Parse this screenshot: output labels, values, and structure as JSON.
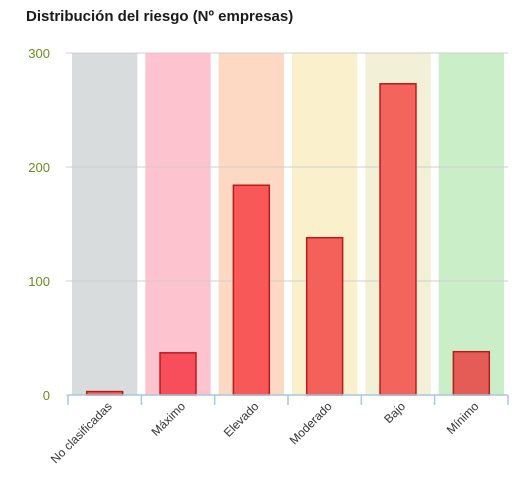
{
  "chart_data": {
    "type": "bar",
    "title": "Distribución del riesgo (Nº empresas)",
    "categories": [
      "No clasificadas",
      "Máximo",
      "Elevado",
      "Moderado",
      "Bajo",
      "Mínimo"
    ],
    "values": [
      3,
      37,
      184,
      138,
      273,
      38
    ],
    "ylim": [
      0,
      300
    ],
    "yticks": [
      0,
      100,
      200,
      300
    ],
    "grid": true,
    "legend": "none",
    "colors": {
      "bands": [
        "#d8dcdc",
        "#fdc3cf",
        "#fdd8c2",
        "#fbf0cc",
        "#f2f0d6",
        "#c9eec8"
      ],
      "bars": [
        "#f36363",
        "#f84e5c",
        "#f95858",
        "#f4605a",
        "#f3645d",
        "#e55c57"
      ],
      "bar_stroke": "#b71c1c",
      "axis": "#a8c8dc",
      "ytick_text": "#6a8e1c"
    }
  }
}
